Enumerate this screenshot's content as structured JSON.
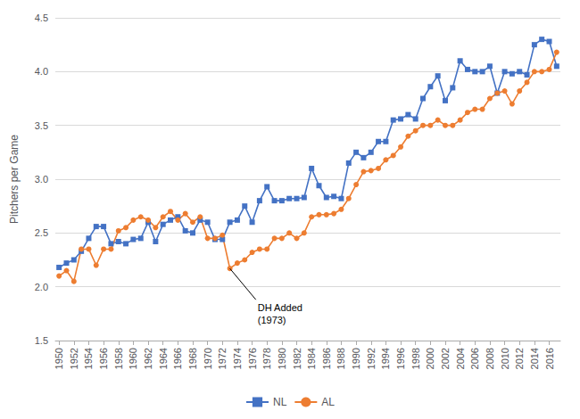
{
  "chart_data": {
    "type": "line",
    "x": [
      1950,
      1951,
      1952,
      1953,
      1954,
      1955,
      1956,
      1957,
      1958,
      1959,
      1960,
      1961,
      1962,
      1963,
      1964,
      1965,
      1966,
      1967,
      1968,
      1969,
      1970,
      1971,
      1972,
      1973,
      1974,
      1975,
      1976,
      1977,
      1978,
      1979,
      1980,
      1981,
      1982,
      1983,
      1984,
      1985,
      1986,
      1987,
      1988,
      1989,
      1990,
      1991,
      1992,
      1993,
      1994,
      1995,
      1996,
      1997,
      1998,
      1999,
      2000,
      2001,
      2002,
      2003,
      2004,
      2005,
      2006,
      2007,
      2008,
      2009,
      2010,
      2011,
      2012,
      2013,
      2014,
      2015,
      2016,
      2017
    ],
    "series": [
      {
        "name": "NL",
        "color": "#4472C4",
        "marker": "square",
        "values": [
          2.18,
          2.22,
          2.25,
          2.33,
          2.45,
          2.56,
          2.56,
          2.4,
          2.42,
          2.4,
          2.44,
          2.45,
          2.6,
          2.42,
          2.58,
          2.62,
          2.65,
          2.52,
          2.5,
          2.62,
          2.6,
          2.44,
          2.44,
          2.6,
          2.62,
          2.75,
          2.6,
          2.8,
          2.93,
          2.8,
          2.8,
          2.82,
          2.82,
          2.83,
          3.1,
          2.94,
          2.83,
          2.84,
          2.82,
          3.15,
          3.25,
          3.2,
          3.25,
          3.35,
          3.35,
          3.55,
          3.56,
          3.6,
          3.56,
          3.75,
          3.86,
          3.96,
          3.73,
          3.85,
          4.1,
          4.02,
          4.0,
          4.0,
          4.05,
          3.8,
          4.0,
          3.98,
          4.0,
          3.97,
          4.25,
          4.3,
          4.28,
          4.05
        ]
      },
      {
        "name": "AL",
        "color": "#ED7D31",
        "marker": "circle",
        "values": [
          2.1,
          2.15,
          2.05,
          2.35,
          2.35,
          2.2,
          2.35,
          2.35,
          2.52,
          2.55,
          2.62,
          2.65,
          2.62,
          2.55,
          2.65,
          2.7,
          2.62,
          2.68,
          2.6,
          2.65,
          2.45,
          2.45,
          2.48,
          2.17,
          2.22,
          2.25,
          2.32,
          2.35,
          2.35,
          2.45,
          2.45,
          2.5,
          2.45,
          2.5,
          2.65,
          2.67,
          2.67,
          2.68,
          2.72,
          2.82,
          2.95,
          3.07,
          3.08,
          3.1,
          3.18,
          3.22,
          3.3,
          3.4,
          3.45,
          3.5,
          3.5,
          3.55,
          3.5,
          3.5,
          3.55,
          3.62,
          3.65,
          3.65,
          3.75,
          3.8,
          3.82,
          3.7,
          3.82,
          3.9,
          4.0,
          4.0,
          4.02,
          4.18
        ]
      }
    ],
    "ylabel": "Pitchers per Game",
    "xlim": [
      1949.5,
      2017.5
    ],
    "xticks": [
      1950,
      1952,
      1954,
      1956,
      1958,
      1960,
      1962,
      1964,
      1966,
      1968,
      1970,
      1972,
      1974,
      1976,
      1978,
      1980,
      1982,
      1984,
      1986,
      1988,
      1990,
      1992,
      1994,
      1996,
      1998,
      2000,
      2002,
      2004,
      2006,
      2008,
      2010,
      2012,
      2014,
      2016
    ],
    "ylim": [
      1.5,
      4.5
    ],
    "yticks": [
      1.5,
      {
        "value": 2,
        "label": "2.0"
      },
      2.5,
      {
        "value": 3,
        "label": "3.0"
      },
      3.5,
      {
        "value": 4,
        "label": "4.0"
      },
      4.5
    ],
    "grid": true,
    "legend": "bottom",
    "annotations": [
      {
        "text": "DH Added\n(1973)",
        "xy": [
          1973,
          2.17
        ],
        "xytext": [
          1976.5,
          1.88
        ]
      }
    ]
  }
}
